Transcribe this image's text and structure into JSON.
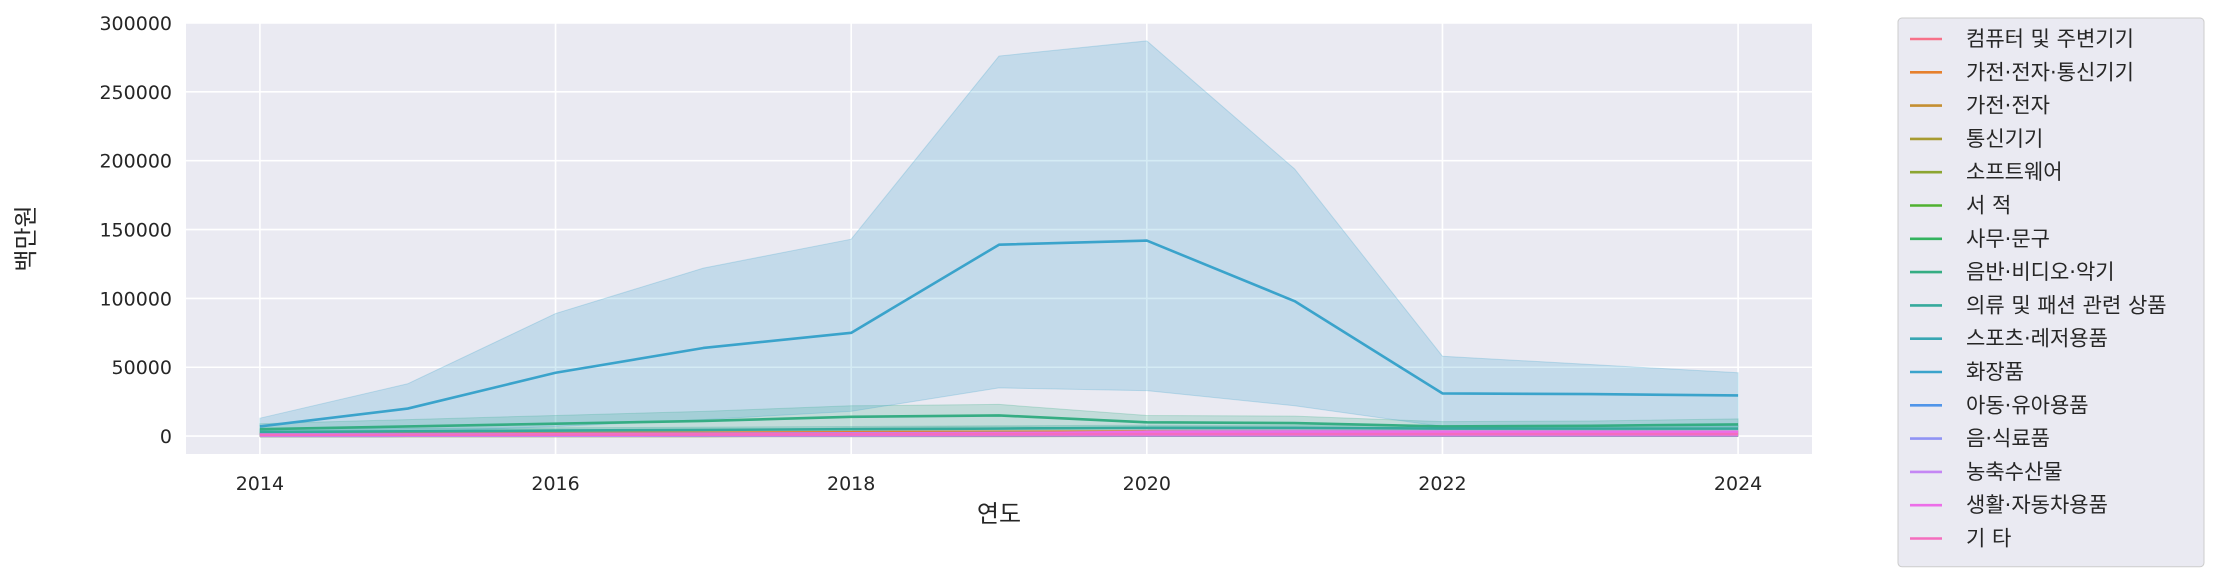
{
  "chart_data": {
    "type": "line",
    "xlabel": "연도",
    "ylabel": "백만원",
    "xlim": [
      2013.5,
      2024.5
    ],
    "ylim": [
      -13000,
      300000
    ],
    "x_ticks": [
      2014,
      2016,
      2018,
      2020,
      2022,
      2024
    ],
    "y_ticks": [
      0,
      50000,
      100000,
      150000,
      200000,
      250000,
      300000
    ],
    "grid": true,
    "legend_position": "outside-right",
    "x": [
      2014,
      2015,
      2016,
      2017,
      2018,
      2019,
      2020,
      2021,
      2022,
      2023,
      2024
    ],
    "series": [
      {
        "name": "컴퓨터 및 주변기기",
        "color": "#f77189",
        "values": [
          400,
          500,
          600,
          700,
          800,
          900,
          1000,
          1100,
          1200,
          1200,
          1300
        ]
      },
      {
        "name": "가전·전자·통신기기",
        "color": "#e6802d",
        "values": [
          1500,
          1800,
          2100,
          2400,
          2800,
          3000,
          3200,
          3000,
          2900,
          2800,
          2800
        ],
        "ci_lower": [
          800,
          1000,
          1200,
          1400,
          1600,
          1800,
          2000,
          1900,
          1800,
          1800,
          1800
        ],
        "ci_upper": [
          2200,
          2600,
          3000,
          3400,
          3900,
          4200,
          4400,
          4100,
          4000,
          3900,
          3800
        ]
      },
      {
        "name": "가전·전자",
        "color": "#c48f32",
        "values": [
          1000,
          1200,
          1400,
          1600,
          1800,
          2000,
          2200,
          2100,
          2000,
          2000,
          1900
        ]
      },
      {
        "name": "통신기기",
        "color": "#a79b31",
        "values": [
          500,
          600,
          700,
          800,
          900,
          1000,
          1000,
          900,
          900,
          900,
          900
        ]
      },
      {
        "name": "소프트웨어",
        "color": "#8ca531",
        "values": [
          100,
          100,
          150,
          150,
          200,
          200,
          250,
          250,
          250,
          250,
          250
        ]
      },
      {
        "name": "서 적",
        "color": "#50b131",
        "values": [
          300,
          350,
          400,
          450,
          500,
          550,
          600,
          600,
          600,
          600,
          600
        ]
      },
      {
        "name": "사무·문구",
        "color": "#33b35f",
        "values": [
          200,
          250,
          300,
          350,
          400,
          450,
          500,
          500,
          500,
          500,
          500
        ]
      },
      {
        "name": "음반·비디오·악기",
        "color": "#35ad83",
        "values": [
          5000,
          7000,
          9000,
          11000,
          14000,
          15000,
          10000,
          9500,
          7000,
          7500,
          8500
        ],
        "ci_lower": [
          1000,
          2000,
          3000,
          4000,
          6000,
          7000,
          5000,
          4500,
          3500,
          4000,
          4500
        ],
        "ci_upper": [
          9000,
          12000,
          15000,
          18000,
          22000,
          23000,
          15000,
          14500,
          10500,
          11000,
          12500
        ]
      },
      {
        "name": "의류 및 패션 관련 상품",
        "color": "#36aa9c",
        "values": [
          3000,
          3500,
          4000,
          4500,
          5000,
          5500,
          6000,
          6000,
          5500,
          5500,
          5500
        ],
        "ci_lower": [
          1000,
          1500,
          2000,
          2500,
          3000,
          3500,
          4000,
          4000,
          3500,
          3500,
          3500
        ],
        "ci_upper": [
          5000,
          5500,
          6000,
          6500,
          7000,
          7500,
          8000,
          8000,
          7500,
          7500,
          7500
        ]
      },
      {
        "name": "스포츠·레저용품",
        "color": "#38a6b3",
        "values": [
          1000,
          1200,
          1400,
          1600,
          1800,
          2000,
          2500,
          2400,
          2300,
          2300,
          2300
        ]
      },
      {
        "name": "화장품",
        "color": "#3aa3cb",
        "values": [
          7000,
          20000,
          46000,
          64000,
          75000,
          139000,
          142000,
          98000,
          31000,
          30500,
          29500
        ],
        "ci_lower": [
          2000,
          3000,
          7000,
          12000,
          18000,
          35000,
          33000,
          22000,
          7000,
          7000,
          7000
        ],
        "ci_upper": [
          13000,
          38000,
          89000,
          122000,
          143000,
          276000,
          287000,
          194000,
          58000,
          52000,
          46000
        ]
      },
      {
        "name": "아동·유아용품",
        "color": "#5095e9",
        "values": [
          600,
          700,
          800,
          900,
          1000,
          1100,
          1200,
          1200,
          1100,
          1100,
          1100
        ]
      },
      {
        "name": "음·식료품",
        "color": "#9093f4",
        "values": [
          1200,
          1400,
          1600,
          1800,
          2000,
          2300,
          2700,
          2600,
          2400,
          2400,
          2500
        ]
      },
      {
        "name": "농축수산물",
        "color": "#c486f4",
        "values": [
          200,
          250,
          300,
          350,
          400,
          450,
          500,
          500,
          500,
          500,
          500
        ]
      },
      {
        "name": "생활·자동차용품",
        "color": "#ec6ee8",
        "values": [
          900,
          1100,
          1300,
          1500,
          1700,
          2000,
          3000,
          3300,
          3200,
          3100,
          3000
        ],
        "ci_lower": [
          400,
          500,
          600,
          700,
          800,
          1000,
          1500,
          1700,
          1600,
          1600,
          1500
        ],
        "ci_upper": [
          1400,
          1700,
          2000,
          2300,
          2600,
          3000,
          4500,
          4900,
          4800,
          4600,
          4500
        ]
      },
      {
        "name": "기 타",
        "color": "#f46dbe",
        "values": [
          800,
          900,
          1000,
          1100,
          1200,
          1300,
          1400,
          1400,
          1400,
          1400,
          1400
        ]
      }
    ]
  }
}
